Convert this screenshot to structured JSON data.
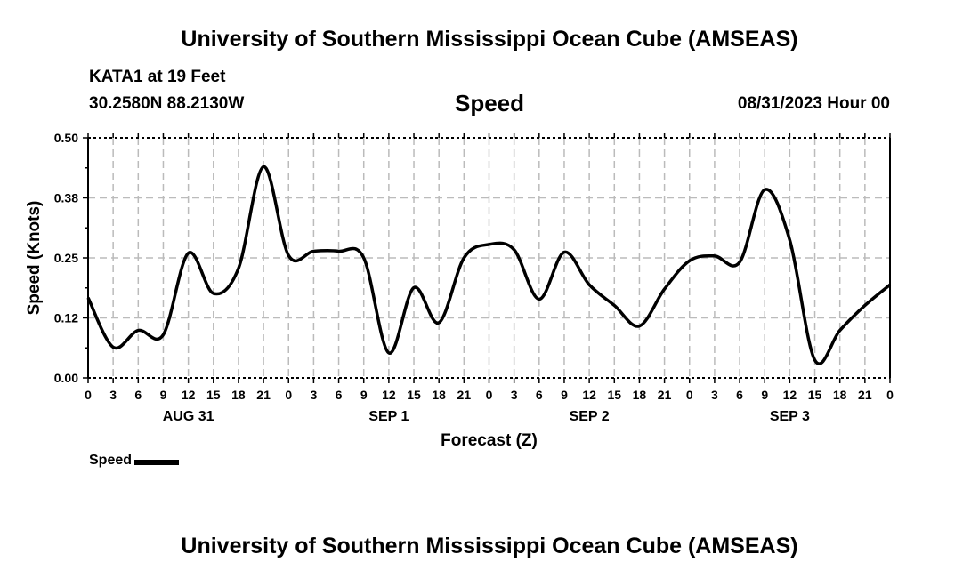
{
  "header": {
    "title": "University of Southern Mississippi Ocean Cube (AMSEAS)",
    "station": "KATA1 at 19 Feet",
    "coords": "30.2580N  88.2130W",
    "date": "08/31/2023 Hour 00",
    "footer_title": "University of Southern Mississippi Ocean Cube (AMSEAS)"
  },
  "chart_data": {
    "type": "line",
    "title": "Speed",
    "xlabel": "Forecast (Z)",
    "ylabel": "Speed (Knots)",
    "ylim": [
      0,
      0.5
    ],
    "yticks": [
      "0.00",
      "0.12",
      "0.25",
      "0.38",
      "0.50"
    ],
    "ytick_values": [
      0,
      0.125,
      0.25,
      0.375,
      0.5
    ],
    "x_hours_step": 3,
    "xtick_labels": [
      "0",
      "3",
      "6",
      "9",
      "12",
      "15",
      "18",
      "21",
      "0",
      "3",
      "6",
      "9",
      "12",
      "15",
      "18",
      "21",
      "0",
      "3",
      "6",
      "9",
      "12",
      "15",
      "18",
      "21",
      "0",
      "3",
      "6",
      "9",
      "12",
      "15",
      "18",
      "21",
      "0"
    ],
    "day_labels": [
      {
        "label": "AUG 31",
        "tick_index": 4
      },
      {
        "label": "SEP 1",
        "tick_index": 12
      },
      {
        "label": "SEP 2",
        "tick_index": 20
      },
      {
        "label": "SEP 3",
        "tick_index": 28
      }
    ],
    "grid": true,
    "legend": {
      "position": "bottom-left",
      "label": "Speed"
    },
    "series": [
      {
        "name": "Speed",
        "color": "#000000",
        "values": [
          0.167,
          0.064,
          0.099,
          0.09,
          0.26,
          0.176,
          0.228,
          0.44,
          0.255,
          0.264,
          0.264,
          0.25,
          0.052,
          0.188,
          0.115,
          0.25,
          0.278,
          0.267,
          0.164,
          0.262,
          0.194,
          0.151,
          0.108,
          0.185,
          0.244,
          0.254,
          0.241,
          0.392,
          0.287,
          0.037,
          0.099,
          0.151,
          0.194
        ]
      }
    ]
  }
}
